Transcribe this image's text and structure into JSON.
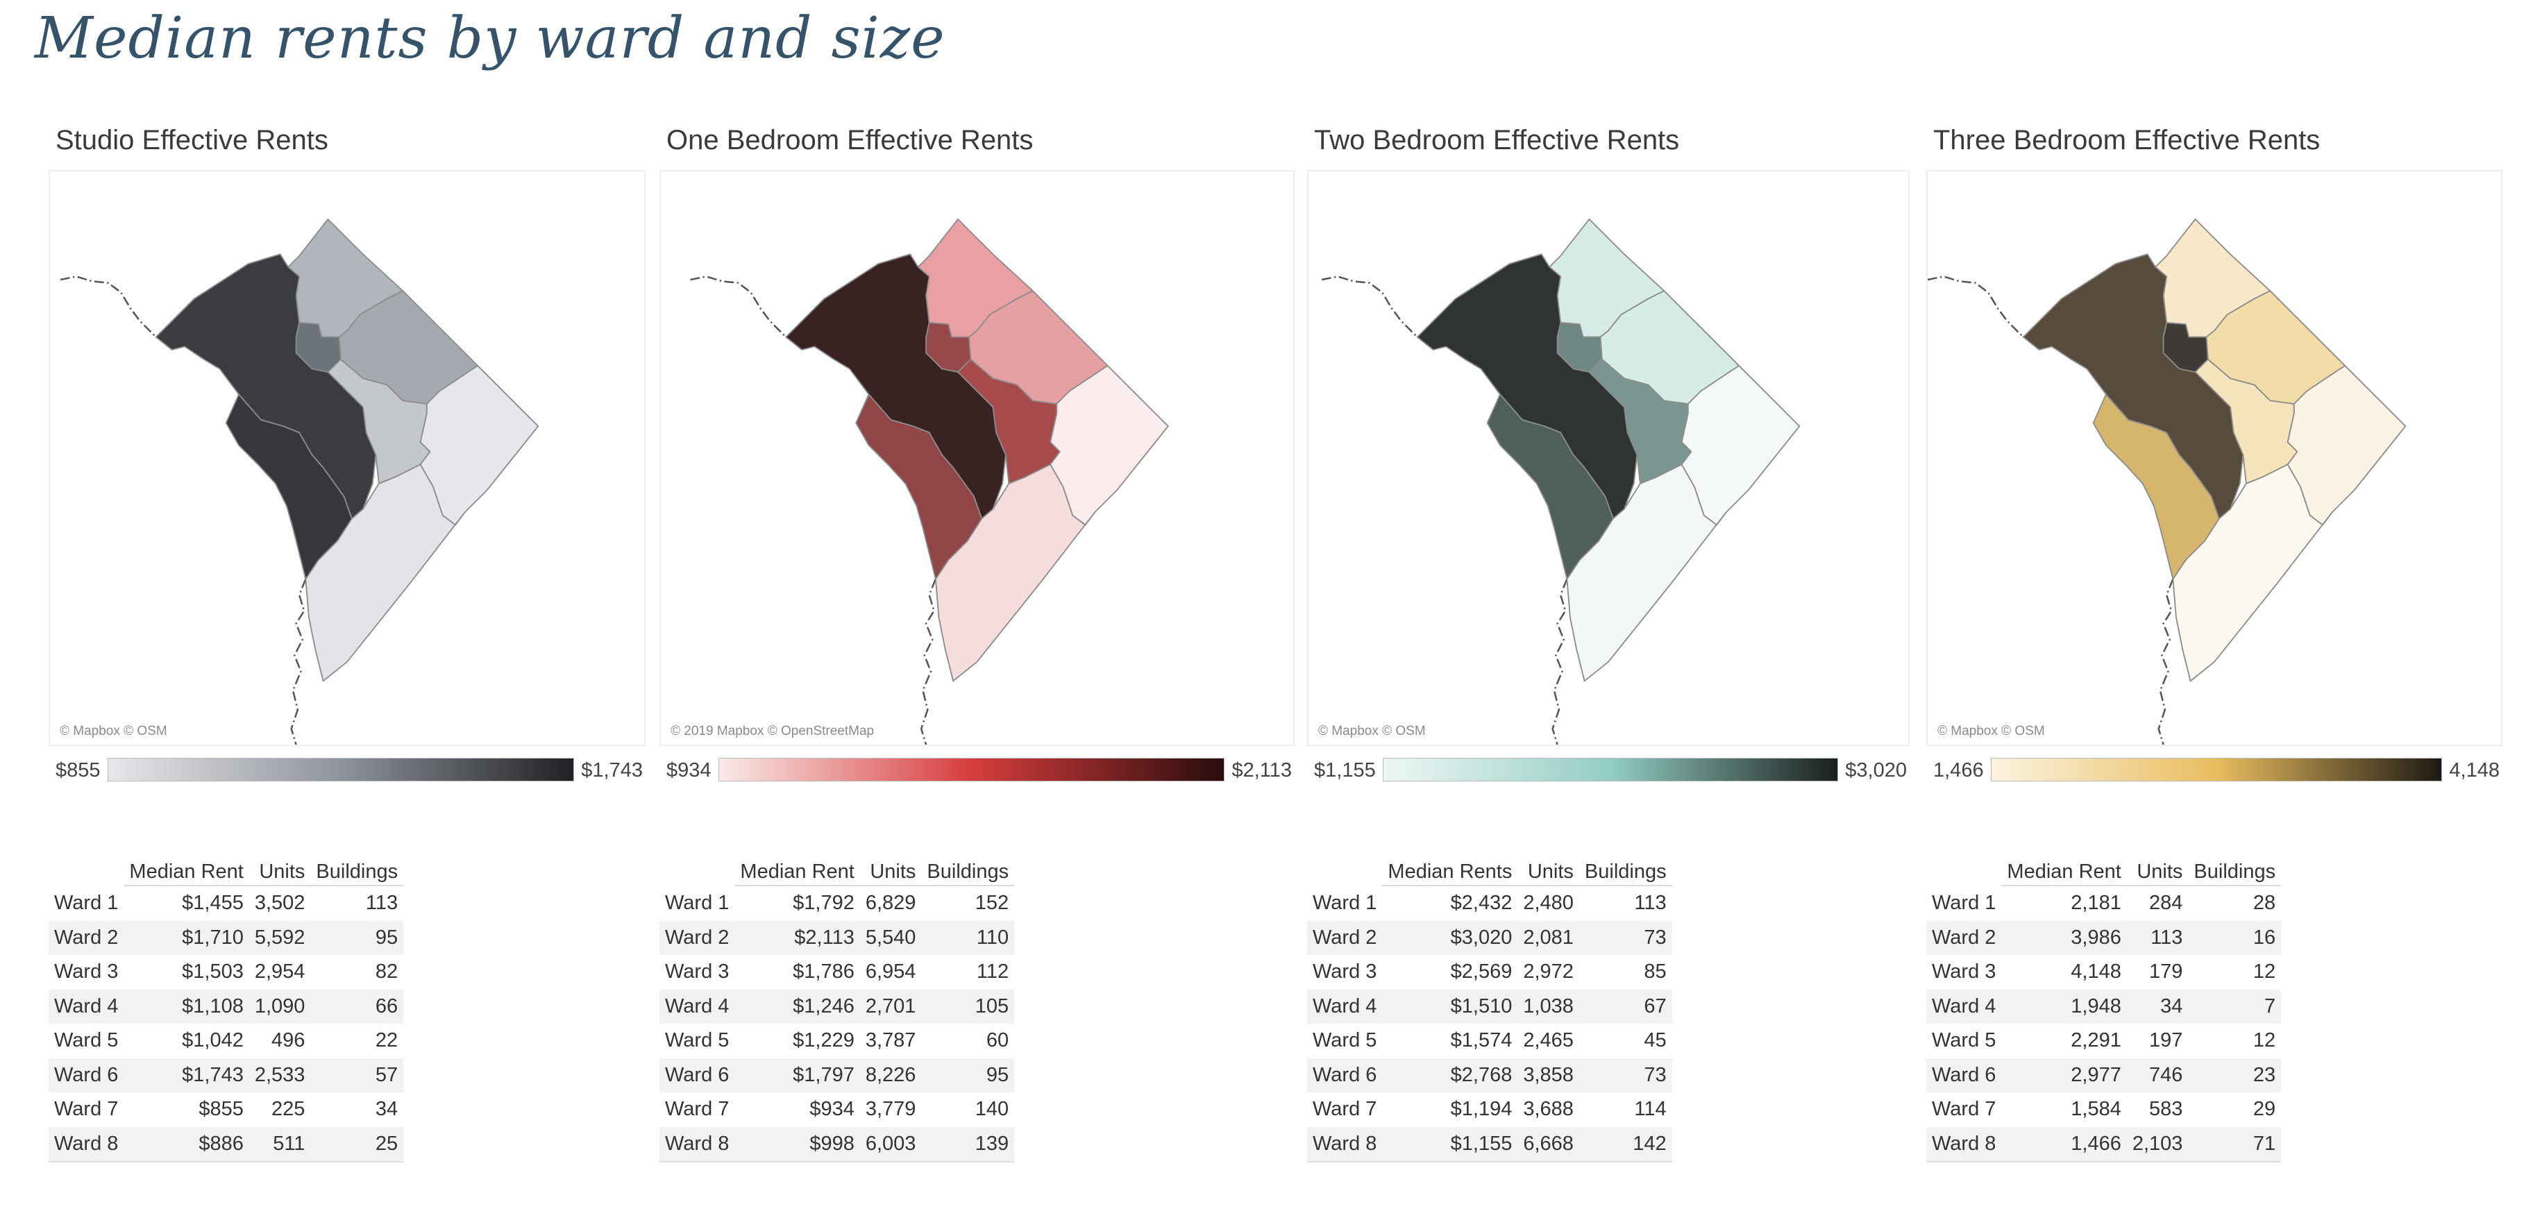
{
  "title": "Median rents by ward and size",
  "panels": [
    {
      "id": "studio",
      "title": "Studio Effective Rents",
      "attribution": "© Mapbox © OSM",
      "legend": {
        "min": "$855",
        "max": "$1,743",
        "colors": [
          "#e6e7e9",
          "#8f949b",
          "#1f2124"
        ]
      },
      "map_colors": {
        "Ward 1": "#6d737b",
        "Ward 2": "#3a3c40",
        "Ward 3": "#b1b5bc",
        "Ward 4": "#a5a9b0",
        "Ward 5": "#c4c7cc",
        "Ward 6": "#35373a",
        "Ward 7": "#e5e7ea",
        "Ward 8": "#e2e4e7"
      },
      "columns": [
        "Median Rent",
        "Units",
        "Buildings"
      ],
      "rows": [
        [
          "Ward 1",
          "$1,455",
          "3,502",
          "113"
        ],
        [
          "Ward 2",
          "$1,710",
          "5,592",
          "95"
        ],
        [
          "Ward 3",
          "$1,503",
          "2,954",
          "82"
        ],
        [
          "Ward 4",
          "$1,108",
          "1,090",
          "66"
        ],
        [
          "Ward 5",
          "$1,042",
          "496",
          "22"
        ],
        [
          "Ward 6",
          "$1,743",
          "2,533",
          "57"
        ],
        [
          "Ward 7",
          "$855",
          "225",
          "34"
        ],
        [
          "Ward 8",
          "$886",
          "511",
          "25"
        ]
      ]
    },
    {
      "id": "one-bedroom",
      "title": "One Bedroom Effective Rents",
      "attribution": "© 2019 Mapbox © OpenStreetMap",
      "legend": {
        "min": "$934",
        "max": "$2,113",
        "colors": [
          "#fbeaea",
          "#d63d3d",
          "#2a0c0c"
        ]
      },
      "map_colors": {
        "Ward 1": "#96484a",
        "Ward 2": "#392222",
        "Ward 3": "#e8a0a2",
        "Ward 4": "#e6a0a2",
        "Ward 5": "#a64a4c",
        "Ward 6": "#924547",
        "Ward 7": "#faecec",
        "Ward 8": "#f5dcdd"
      },
      "columns": [
        "Median Rent",
        "Units",
        "Buildings"
      ],
      "rows": [
        [
          "Ward 1",
          "$1,792",
          "6,829",
          "152"
        ],
        [
          "Ward 2",
          "$2,113",
          "5,540",
          "110"
        ],
        [
          "Ward 3",
          "$1,786",
          "6,954",
          "112"
        ],
        [
          "Ward 4",
          "$1,246",
          "2,701",
          "105"
        ],
        [
          "Ward 5",
          "$1,229",
          "3,787",
          "60"
        ],
        [
          "Ward 6",
          "$1,797",
          "8,226",
          "95"
        ],
        [
          "Ward 7",
          "$934",
          "3,779",
          "140"
        ],
        [
          "Ward 8",
          "$998",
          "6,003",
          "139"
        ]
      ]
    },
    {
      "id": "two-bedroom",
      "title": "Two Bedroom Effective Rents",
      "attribution": "© Mapbox © OSM",
      "legend": {
        "min": "$1,155",
        "max": "$3,020",
        "colors": [
          "#eef7f5",
          "#93cdc2",
          "#1a1f1e"
        ]
      },
      "map_colors": {
        "Ward 1": "#6f8782",
        "Ward 2": "#2f3433",
        "Ward 3": "#d5ebe6",
        "Ward 4": "#d6ece7",
        "Ward 5": "#7b9690",
        "Ward 6": "#4f5f5c",
        "Ward 7": "#f4f9f8",
        "Ward 8": "#f3f8f7"
      },
      "columns": [
        "Median Rents",
        "Units",
        "Buildings"
      ],
      "rows": [
        [
          "Ward 1",
          "$2,432",
          "2,480",
          "113"
        ],
        [
          "Ward 2",
          "$3,020",
          "2,081",
          "73"
        ],
        [
          "Ward 3",
          "$2,569",
          "2,972",
          "85"
        ],
        [
          "Ward 4",
          "$1,510",
          "1,038",
          "67"
        ],
        [
          "Ward 5",
          "$1,574",
          "2,465",
          "45"
        ],
        [
          "Ward 6",
          "$2,768",
          "3,858",
          "73"
        ],
        [
          "Ward 7",
          "$1,194",
          "3,688",
          "114"
        ],
        [
          "Ward 8",
          "$1,155",
          "6,668",
          "142"
        ]
      ]
    },
    {
      "id": "three-bedroom",
      "title": "Three Bedroom Effective Rents",
      "attribution": "© Mapbox © OSM",
      "legend": {
        "min": "1,466",
        "max": "4,148",
        "colors": [
          "#fbf3e0",
          "#e9bd5e",
          "#1d1913"
        ]
      },
      "map_colors": {
        "Ward 1": "#3e3a35",
        "Ward 2": "#574b3b",
        "Ward 3": "#f7e8c9",
        "Ward 4": "#f2dca8",
        "Ward 5": "#f5e4bc",
        "Ward 6": "#d6b66c",
        "Ward 7": "#fbf4e4",
        "Ward 8": "#fcf8ef"
      },
      "columns": [
        "Median Rent",
        "Units",
        "Buildings"
      ],
      "rows": [
        [
          "Ward 1",
          "2,181",
          "284",
          "28"
        ],
        [
          "Ward 2",
          "3,986",
          "113",
          "16"
        ],
        [
          "Ward 3",
          "4,148",
          "179",
          "12"
        ],
        [
          "Ward 4",
          "1,948",
          "34",
          "7"
        ],
        [
          "Ward 5",
          "2,291",
          "197",
          "12"
        ],
        [
          "Ward 6",
          "2,977",
          "746",
          "23"
        ],
        [
          "Ward 7",
          "1,584",
          "583",
          "29"
        ],
        [
          "Ward 8",
          "1,466",
          "2,103",
          "71"
        ]
      ]
    }
  ]
}
